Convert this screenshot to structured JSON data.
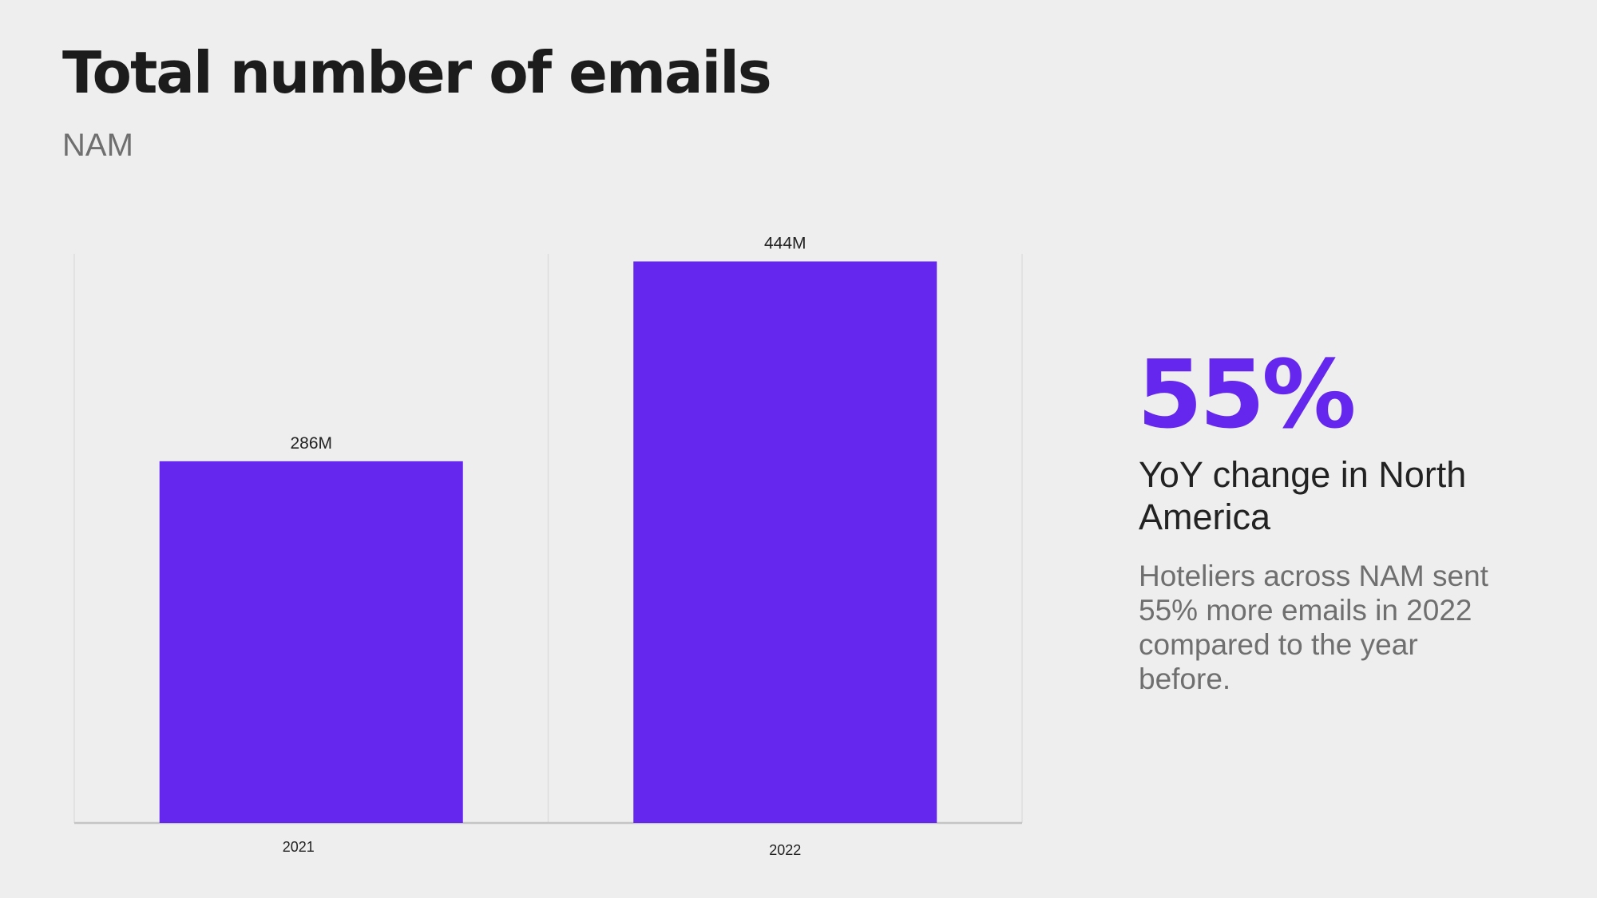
{
  "slide": {
    "title": "Total number of emails",
    "subtitle": "NAM"
  },
  "highlight": {
    "value": "55%",
    "label": "YoY change in North America",
    "description": "Hoteliers across NAM sent 55% more emails in 2022 compared to the year before."
  },
  "colors": {
    "bar": "#6527ed",
    "background": "#eeeeee",
    "gridline": "#dddddd",
    "axis": "#c4c4c4"
  },
  "chart_data": {
    "type": "bar",
    "categories": [
      "2021",
      "2022"
    ],
    "values": [
      286,
      444
    ],
    "data_labels": [
      "286M",
      "444M"
    ],
    "unit": "M",
    "title": "",
    "xlabel": "",
    "ylabel": "",
    "ylim": [
      0,
      450
    ],
    "grid": "vertical separators only",
    "legend": "none"
  }
}
